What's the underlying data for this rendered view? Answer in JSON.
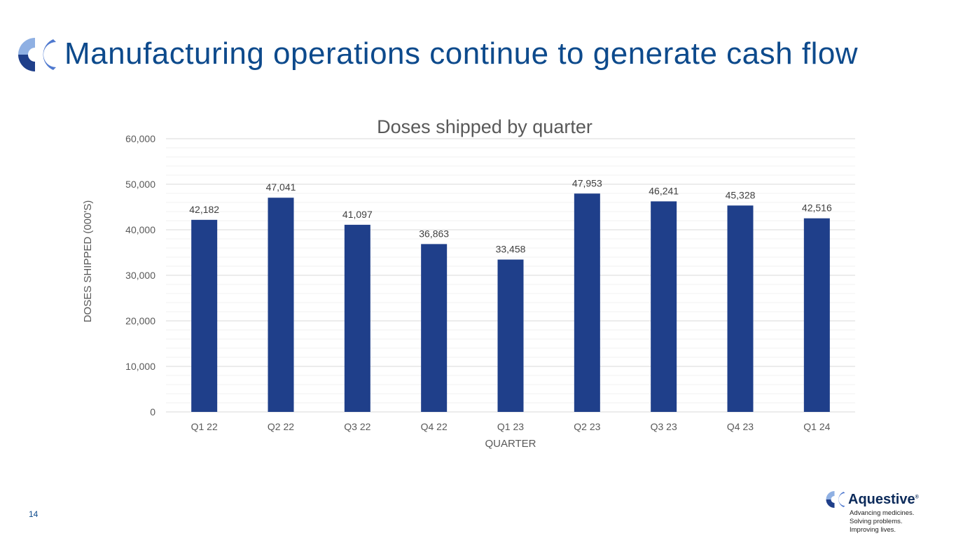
{
  "header": {
    "title": "Manufacturing operations continue to generate cash flow"
  },
  "footer": {
    "page_number": "14",
    "brand": "Aquestive",
    "registered": "®",
    "tagline": [
      "Advancing medicines.",
      "Solving problems.",
      "Improving lives."
    ]
  },
  "colors": {
    "title": "#0d4a8c",
    "bar": "#1f3f8a",
    "logo_light": "#8fb0e3",
    "logo_dark": "#1f3f8a",
    "logo_mid": "#4f79cf"
  },
  "chart_data": {
    "type": "bar",
    "title": "Doses shipped by quarter",
    "xlabel": "QUARTER",
    "ylabel": "DOSES SHIPPED (000'S)",
    "categories": [
      "Q1 22",
      "Q2 22",
      "Q3 22",
      "Q4 22",
      "Q1 23",
      "Q2 23",
      "Q3 23",
      "Q4 23",
      "Q1 24"
    ],
    "values": [
      42182,
      47041,
      41097,
      36863,
      33458,
      47953,
      46241,
      45328,
      42516
    ],
    "data_labels": [
      "42,182",
      "47,041",
      "41,097",
      "36,863",
      "33,458",
      "47,953",
      "46,241",
      "45,328",
      "42,516"
    ],
    "ylim": [
      0,
      60000
    ],
    "yticks": [
      "0",
      "10,000",
      "20,000",
      "30,000",
      "40,000",
      "50,000",
      "60,000"
    ],
    "grid": true
  }
}
